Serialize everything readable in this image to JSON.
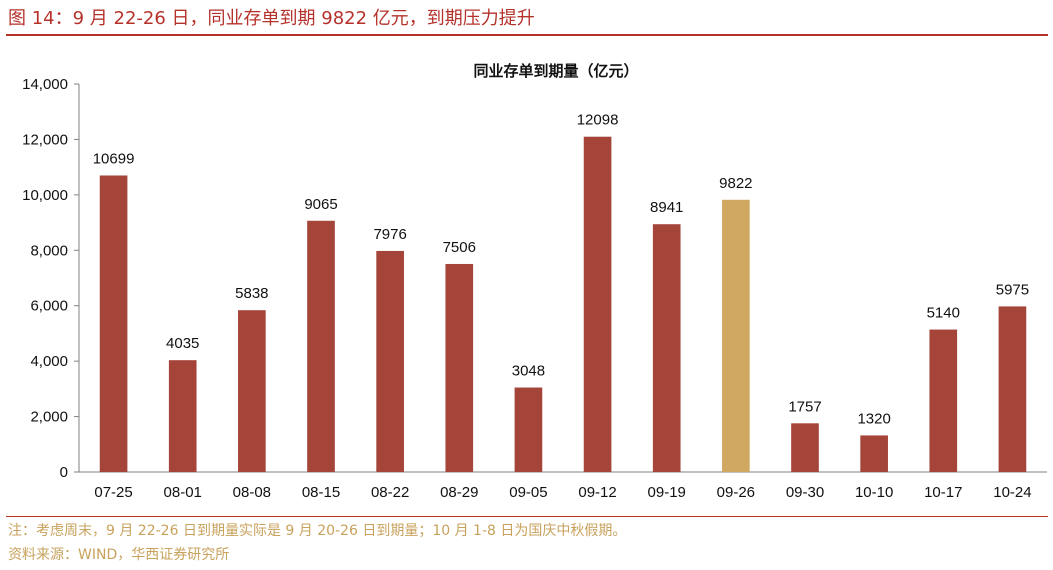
{
  "figure": {
    "title": "图 14：9 月 22-26 日，同业存单到期 9822 亿元，到期压力提升",
    "note": "注：考虑周末，9 月 22-26 日到期量实际是 9 月 20-26 日到期量；10 月 1-8 日为国庆中秋假期。",
    "source": "资料来源：WIND，华西证券研究所"
  },
  "colors": {
    "accent": "#b5322b",
    "bar": "#a5453a",
    "highlight": "#d0a862",
    "footnote": "#c8a25c"
  },
  "chart_data": {
    "type": "bar",
    "title": "同业存单到期量（亿元）",
    "categories": [
      "07-25",
      "08-01",
      "08-08",
      "08-15",
      "08-22",
      "08-29",
      "09-05",
      "09-12",
      "09-19",
      "09-26",
      "09-30",
      "10-10",
      "10-17",
      "10-24"
    ],
    "values": [
      10699,
      4035,
      5838,
      9065,
      7976,
      7506,
      3048,
      12098,
      8941,
      9822,
      1757,
      1320,
      5140,
      5975
    ],
    "highlight_category": "09-26",
    "ylim": [
      0,
      14000
    ],
    "yticks": [
      "0",
      "2,000",
      "4,000",
      "6,000",
      "8,000",
      "10,000",
      "12,000",
      "14,000"
    ],
    "xlabel": "",
    "ylabel": "",
    "grid": false,
    "data_labels": true
  }
}
